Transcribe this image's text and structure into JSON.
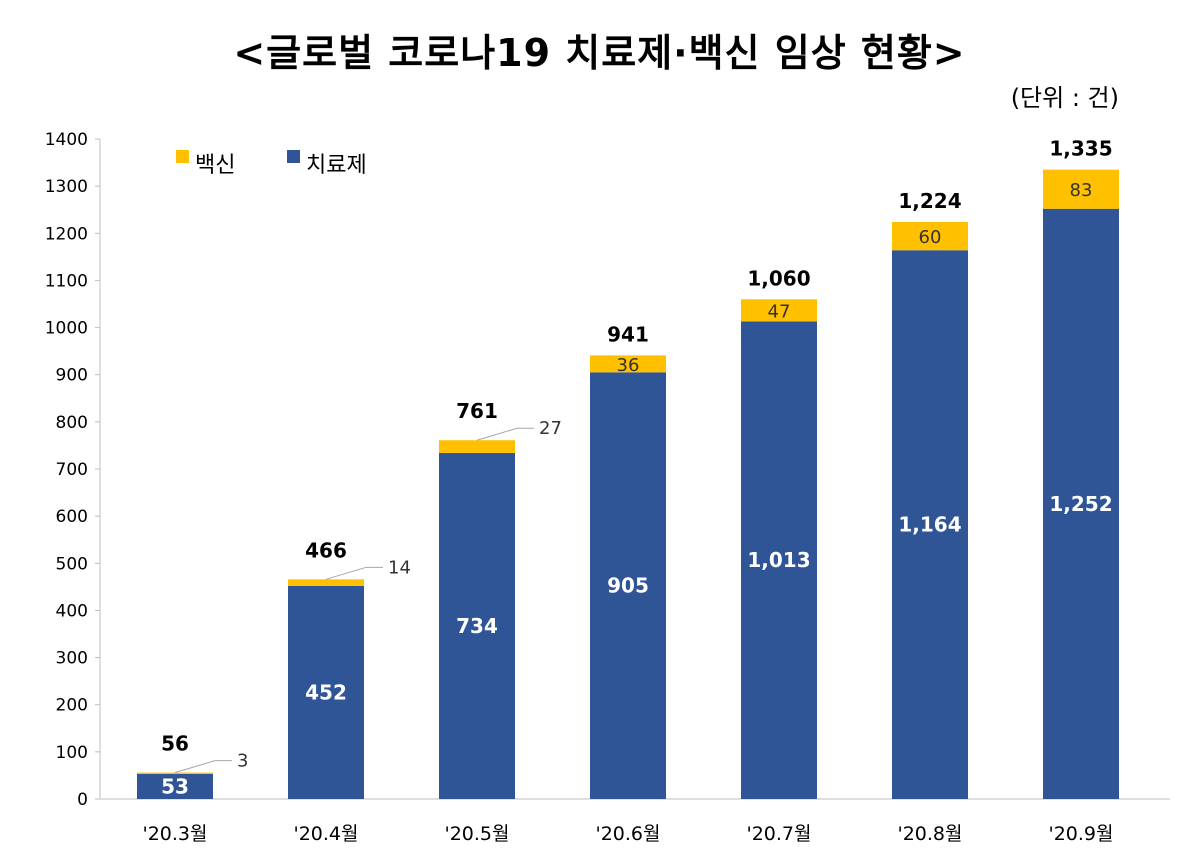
{
  "title": "<글로벌 코로나19 치료제·백신 임상 현황>",
  "unit": "(단위 : 건)",
  "chart_data": {
    "type": "bar",
    "stacked": true,
    "categories": [
      "'20.3월",
      "'20.4월",
      "'20.5월",
      "'20.6월",
      "'20.7월",
      "'20.8월",
      "'20.9월"
    ],
    "series": [
      {
        "name": "치료제",
        "color": "#2F5597",
        "values": [
          53,
          452,
          734,
          905,
          1013,
          1164,
          1252
        ],
        "labels": [
          "53",
          "452",
          "734",
          "905",
          "1,013",
          "1,164",
          "1,252"
        ]
      },
      {
        "name": "백신",
        "color": "#FFC000",
        "values": [
          3,
          14,
          27,
          36,
          47,
          60,
          83
        ],
        "labels": [
          "3",
          "14",
          "27",
          "36",
          "47",
          "60",
          "83"
        ]
      }
    ],
    "totals": [
      "56",
      "466",
      "761",
      "941",
      "1,060",
      "1,224",
      "1,335"
    ],
    "ylim": [
      0,
      1400
    ],
    "yticks": [
      "0",
      "100",
      "200",
      "300",
      "400",
      "500",
      "600",
      "700",
      "800",
      "900",
      "1000",
      "1100",
      "1200",
      "1300",
      "1400"
    ],
    "legend": [
      "백신",
      "치료제"
    ],
    "legend_position": "top-left",
    "grid": false
  }
}
